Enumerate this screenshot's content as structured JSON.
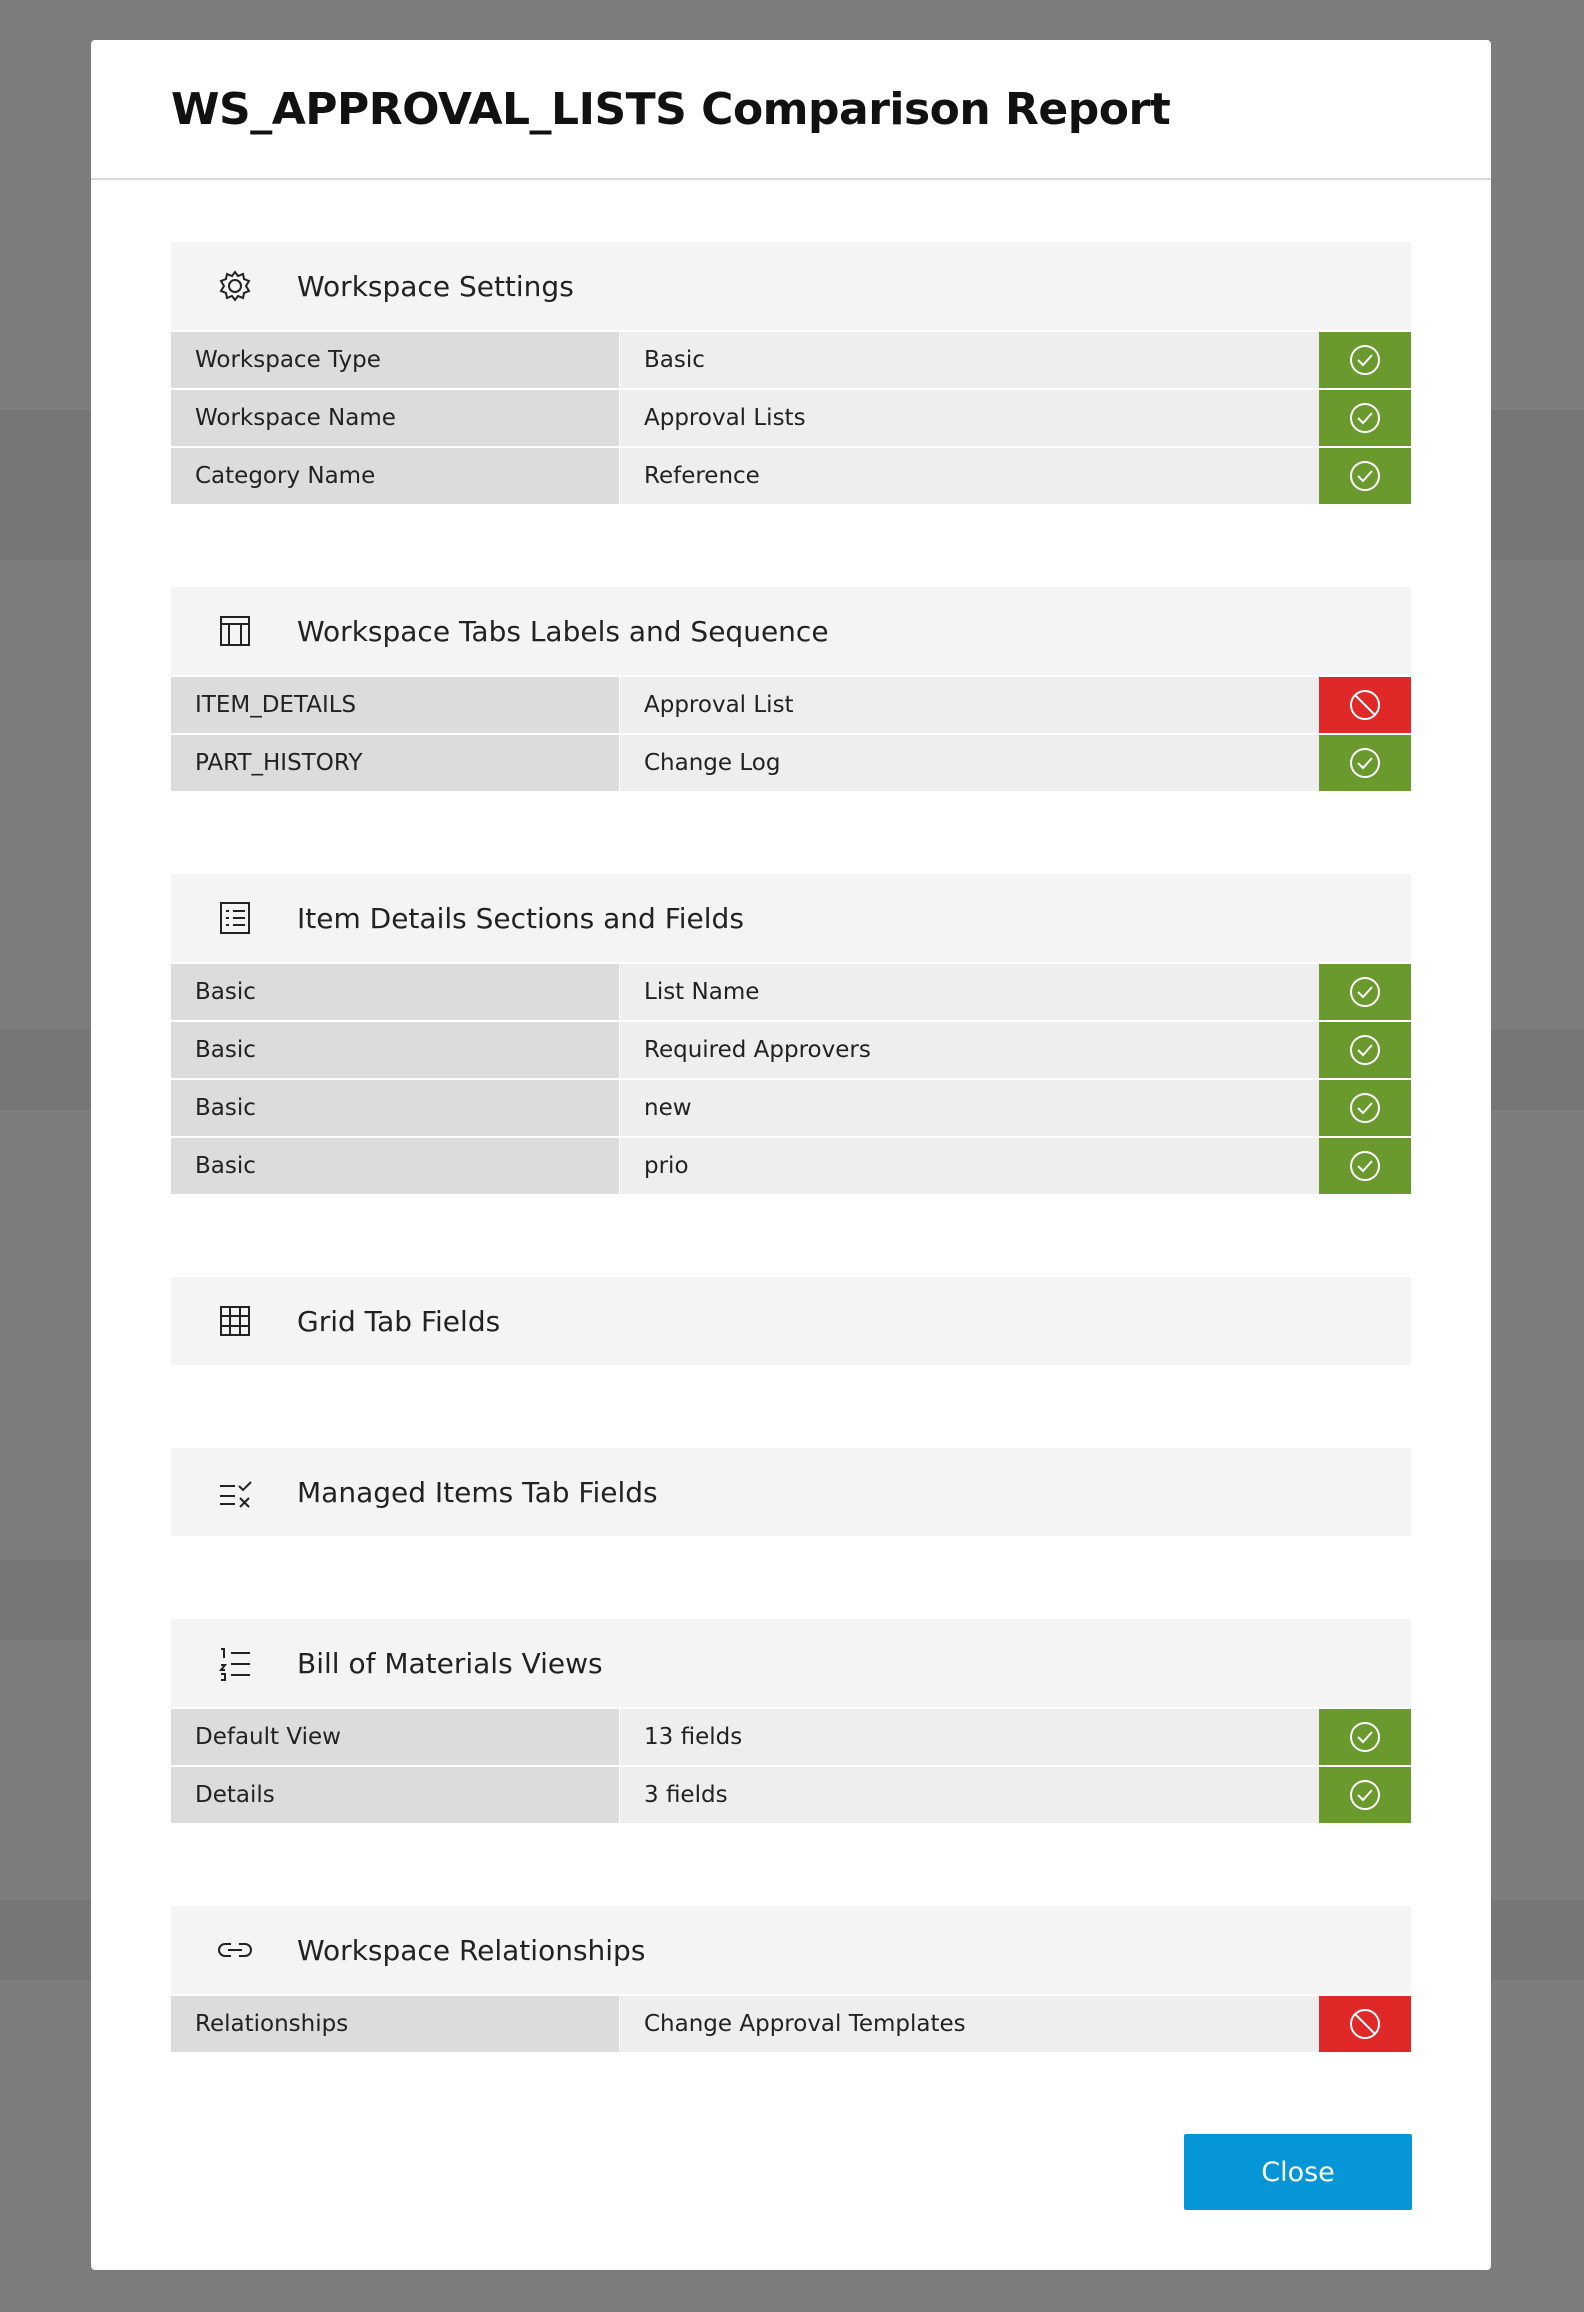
{
  "title": "WS_APPROVAL_LISTS Comparison Report",
  "sections": [
    {
      "title": "Workspace Settings",
      "rows": [
        {
          "label": "Workspace Type",
          "value": "Basic",
          "status": "match"
        },
        {
          "label": "Workspace Name",
          "value": "Approval Lists",
          "status": "match"
        },
        {
          "label": "Category Name",
          "value": "Reference",
          "status": "match"
        }
      ]
    },
    {
      "title": "Workspace Tabs Labels and Sequence",
      "rows": [
        {
          "label": "ITEM_DETAILS",
          "value": "Approval List",
          "status": "mismatch"
        },
        {
          "label": "PART_HISTORY",
          "value": "Change Log",
          "status": "match"
        }
      ]
    },
    {
      "title": "Item Details Sections and Fields",
      "rows": [
        {
          "label": "Basic",
          "value": "List Name",
          "status": "match"
        },
        {
          "label": "Basic",
          "value": "Required Approvers",
          "status": "match"
        },
        {
          "label": "Basic",
          "value": "new",
          "status": "match"
        },
        {
          "label": "Basic",
          "value": "prio",
          "status": "match"
        }
      ]
    },
    {
      "title": "Grid Tab Fields",
      "rows": []
    },
    {
      "title": "Managed Items Tab Fields",
      "rows": []
    },
    {
      "title": "Bill of Materials Views",
      "rows": [
        {
          "label": "Default View",
          "value": "13 fields",
          "status": "match"
        },
        {
          "label": "Details",
          "value": "3 fields",
          "status": "match"
        }
      ]
    },
    {
      "title": "Workspace Relationships",
      "rows": [
        {
          "label": "Relationships",
          "value": "Change Approval Templates",
          "status": "mismatch"
        }
      ]
    }
  ],
  "close_button": "Close"
}
